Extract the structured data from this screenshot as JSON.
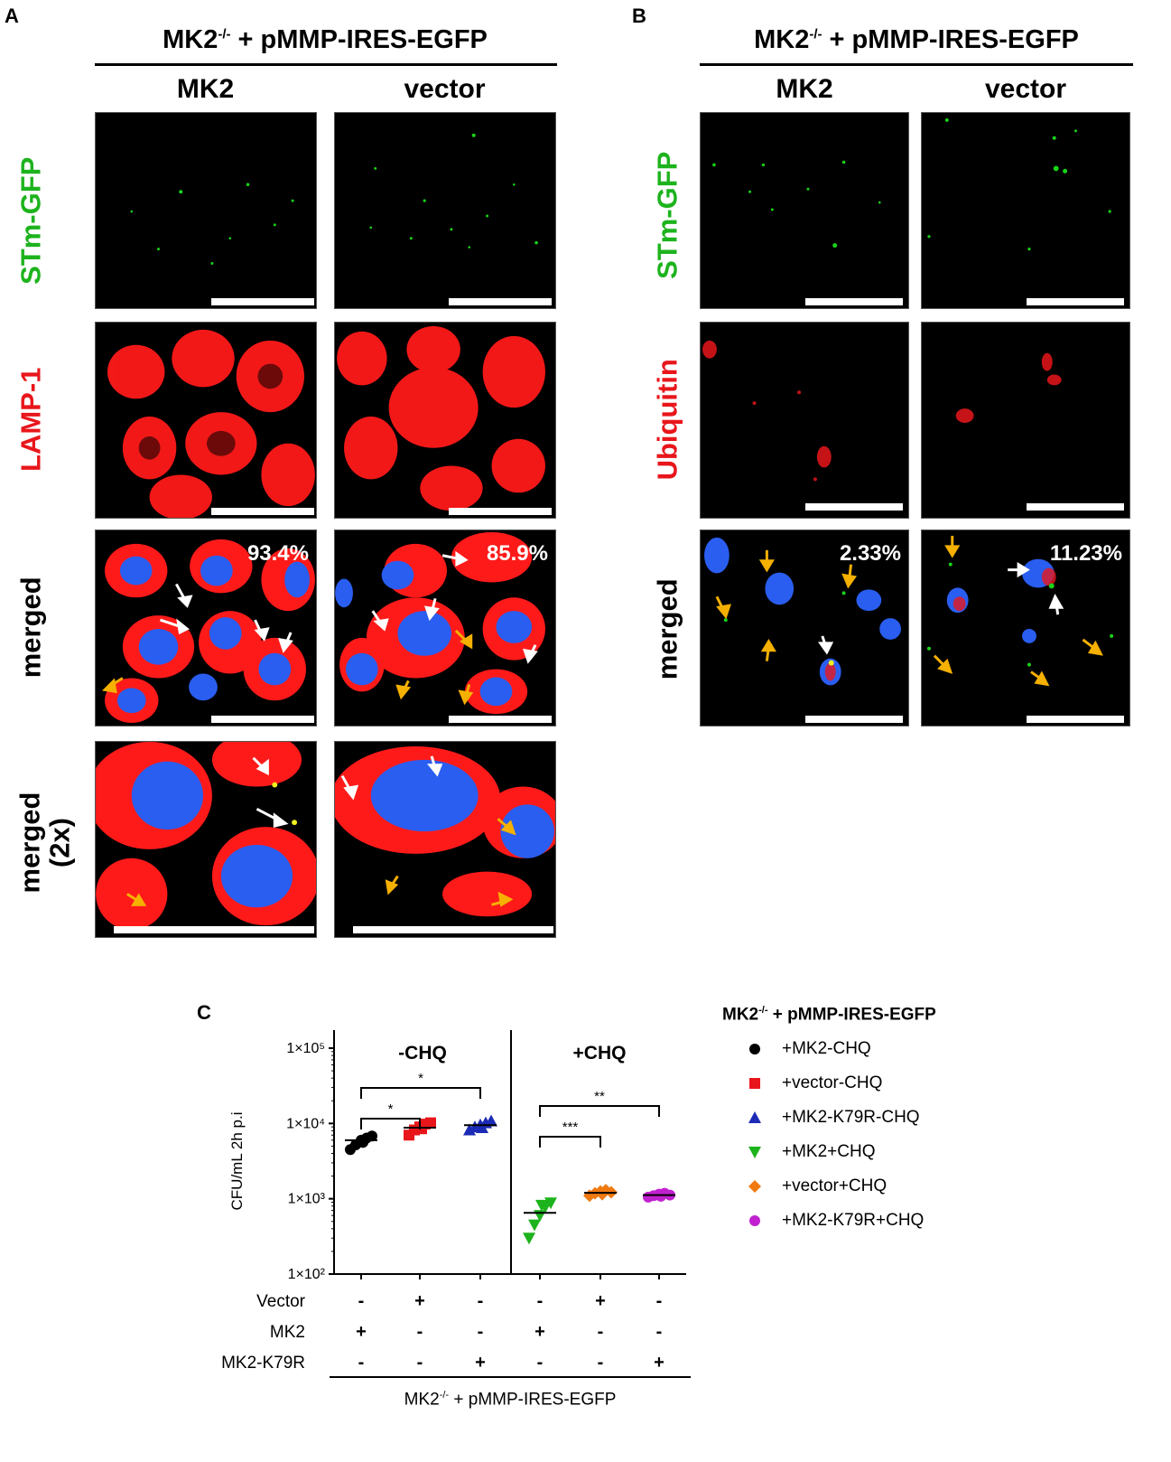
{
  "panel_letters": {
    "a": "A",
    "b": "B",
    "c": "C"
  },
  "panel_a": {
    "title_main": "MK2",
    "title_sup": "-/-",
    "title_rest": " + pMMP-IRES-EGFP",
    "columns": [
      "MK2",
      "vector"
    ],
    "rows": [
      "STm-GFP",
      "LAMP-1",
      "merged",
      "merged",
      "(2x)"
    ],
    "percent_mk2": "93.4%",
    "percent_vector": "85.9%"
  },
  "panel_b": {
    "title_main": "MK2",
    "title_sup": "-/-",
    "title_rest": " + pMMP-IRES-EGFP",
    "columns": [
      "MK2",
      "vector"
    ],
    "rows": [
      "STm-GFP",
      "Ubiquitin",
      "merged"
    ],
    "percent_mk2": "2.33%",
    "percent_vector": "11.23%"
  },
  "colors": {
    "green_label": "#1db31d",
    "red_label": "#e8161b",
    "gfp": "#18d418",
    "lamp": "#ff1a1a",
    "dapi": "#2a5ef0",
    "arrow_yellow": "#f5b000",
    "arrow_white": "#ffffff"
  },
  "chart_data": {
    "type": "scatter",
    "ylabel": "CFU/mL 2h p.i",
    "yscale": "log",
    "ylim": [
      100,
      100000
    ],
    "yticks": [
      "1×10²",
      "1×10³",
      "1×10⁴",
      "1×10⁵"
    ],
    "groups": [
      "-CHQ",
      "+CHQ"
    ],
    "series": [
      {
        "name": "+MK2-CHQ",
        "color": "#000000",
        "marker": "circle",
        "group": "-CHQ",
        "mean": 6000,
        "values": [
          4500,
          5200,
          6000,
          6400,
          6800,
          5600
        ]
      },
      {
        "name": "+vector-CHQ",
        "color": "#e8161b",
        "marker": "square",
        "group": "-CHQ",
        "mean": 8800,
        "values": [
          7000,
          8200,
          9000,
          9800,
          10200,
          8500
        ]
      },
      {
        "name": "+MK2-K79R-CHQ",
        "color": "#1c2bb5",
        "marker": "triangle-up",
        "group": "-CHQ",
        "mean": 9500,
        "values": [
          8200,
          9000,
          9600,
          10200,
          10800,
          8800
        ]
      },
      {
        "name": "+MK2+CHQ",
        "color": "#1db31d",
        "marker": "triangle-down",
        "group": "+CHQ",
        "mean": 650,
        "values": [
          300,
          450,
          600,
          780,
          880,
          820
        ]
      },
      {
        "name": "+vector+CHQ",
        "color": "#f07a10",
        "marker": "diamond",
        "group": "+CHQ",
        "mean": 1200,
        "values": [
          1100,
          1180,
          1250,
          1300,
          1220,
          1150
        ]
      },
      {
        "name": "+MK2-K79R+CHQ",
        "color": "#c020d0",
        "marker": "circle",
        "group": "+CHQ",
        "mean": 1120,
        "values": [
          1050,
          1100,
          1150,
          1180,
          1120,
          1080
        ]
      }
    ],
    "significance": [
      {
        "from": 0,
        "to": 1,
        "label": "*"
      },
      {
        "from": 0,
        "to": 2,
        "label": "*"
      },
      {
        "from": 3,
        "to": 4,
        "label": "***"
      },
      {
        "from": 3,
        "to": 5,
        "label": "**"
      }
    ],
    "table_rows": [
      {
        "label": "Vector",
        "values": [
          "-",
          "+",
          "-",
          "-",
          "+",
          "-"
        ]
      },
      {
        "label": "MK2",
        "values": [
          "+",
          "-",
          "-",
          "+",
          "-",
          "-"
        ]
      },
      {
        "label": "MK2-K79R",
        "values": [
          "-",
          "-",
          "+",
          "-",
          "-",
          "+"
        ]
      }
    ],
    "xlabel_main": "MK2",
    "xlabel_sup": "-/-",
    "xlabel_rest": " + pMMP-IRES-EGFP",
    "legend_title_main": "MK2",
    "legend_title_sup": "-/-",
    "legend_title_rest": " + pMMP-IRES-EGFP"
  }
}
